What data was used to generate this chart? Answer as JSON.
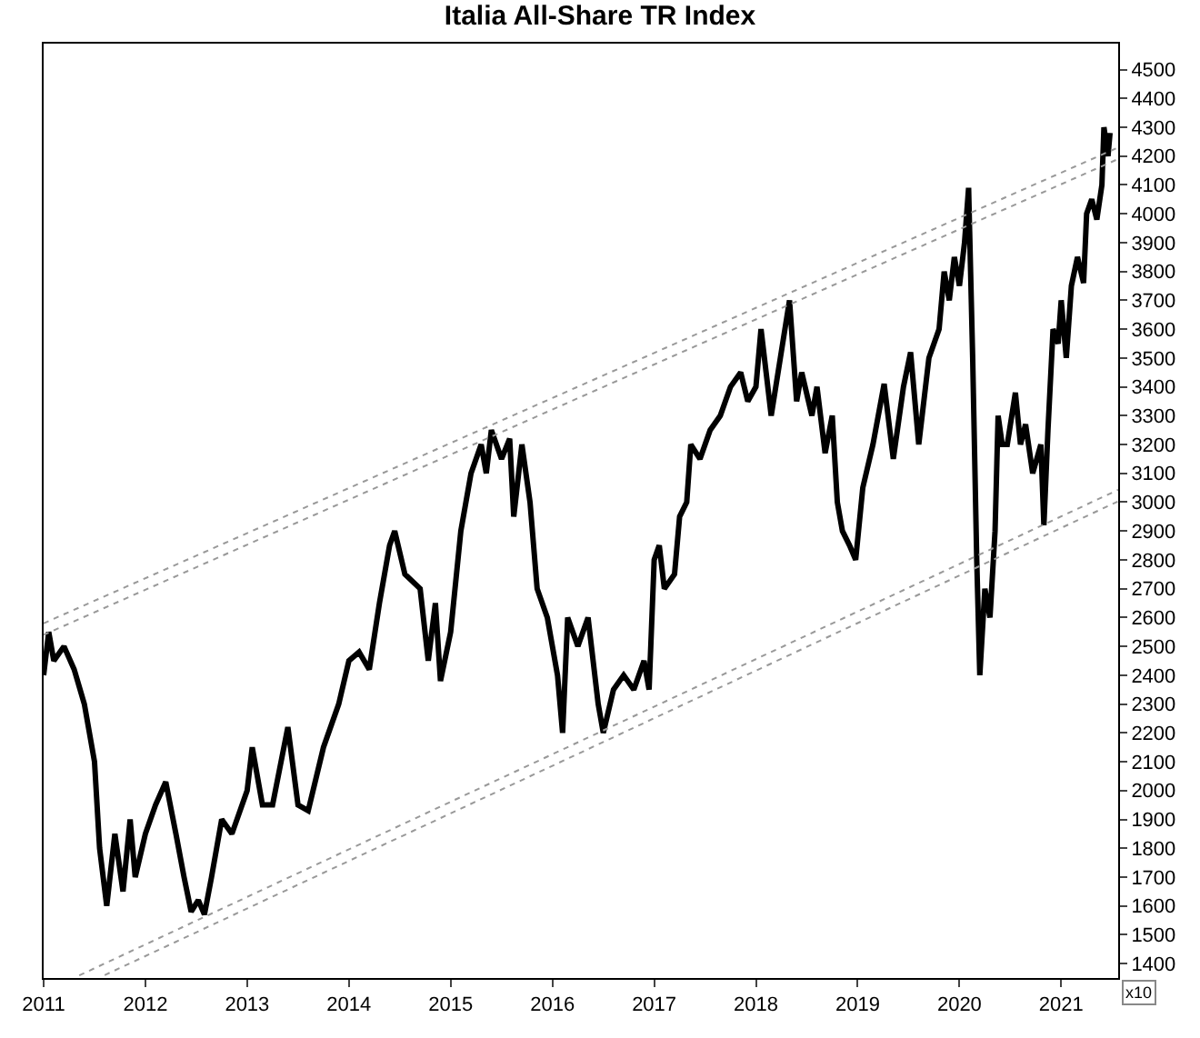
{
  "chart_data": {
    "type": "line",
    "title": "Italia All-Share TR Index",
    "annotations": [
      "x10"
    ],
    "series": [
      {
        "color": "#000000",
        "line_style": "solid",
        "x": [
          2011.0,
          2011.05,
          2011.1,
          2011.2,
          2011.3,
          2011.4,
          2011.5,
          2011.55,
          2011.62,
          2011.7,
          2011.78,
          2011.85,
          2011.9,
          2012.0,
          2012.1,
          2012.2,
          2012.3,
          2012.38,
          2012.45,
          2012.52,
          2012.58,
          2012.65,
          2012.75,
          2012.85,
          2013.0,
          2013.05,
          2013.15,
          2013.25,
          2013.4,
          2013.5,
          2013.6,
          2013.75,
          2013.9,
          2014.0,
          2014.1,
          2014.2,
          2014.3,
          2014.4,
          2014.45,
          2014.55,
          2014.7,
          2014.78,
          2014.85,
          2014.9,
          2015.0,
          2015.1,
          2015.2,
          2015.3,
          2015.35,
          2015.4,
          2015.5,
          2015.58,
          2015.62,
          2015.7,
          2015.78,
          2015.85,
          2015.95,
          2016.05,
          2016.1,
          2016.15,
          2016.25,
          2016.35,
          2016.45,
          2016.5,
          2016.6,
          2016.7,
          2016.8,
          2016.9,
          2016.95,
          2017.0,
          2017.05,
          2017.1,
          2017.2,
          2017.25,
          2017.32,
          2017.36,
          2017.45,
          2017.55,
          2017.65,
          2017.75,
          2017.85,
          2017.92,
          2018.0,
          2018.05,
          2018.1,
          2018.15,
          2018.33,
          2018.4,
          2018.45,
          2018.55,
          2018.6,
          2018.68,
          2018.75,
          2018.8,
          2018.85,
          2018.92,
          2018.98,
          2019.05,
          2019.15,
          2019.26,
          2019.35,
          2019.45,
          2019.52,
          2019.6,
          2019.7,
          2019.8,
          2019.85,
          2019.9,
          2019.95,
          2020.0,
          2020.05,
          2020.09,
          2020.13,
          2020.17,
          2020.2,
          2020.25,
          2020.3,
          2020.35,
          2020.38,
          2020.42,
          2020.47,
          2020.55,
          2020.6,
          2020.65,
          2020.72,
          2020.8,
          2020.83,
          2020.87,
          2020.92,
          2020.97,
          2021.0,
          2021.05,
          2021.1,
          2021.16,
          2021.22,
          2021.25,
          2021.3,
          2021.35,
          2021.4,
          2021.42,
          2021.46,
          2021.48
        ],
        "values": [
          2400,
          2550,
          2450,
          2500,
          2420,
          2300,
          2100,
          1800,
          1600,
          1850,
          1650,
          1900,
          1700,
          1850,
          1950,
          2030,
          1850,
          1700,
          1580,
          1620,
          1570,
          1700,
          1900,
          1850,
          2000,
          2150,
          1950,
          1950,
          2220,
          1950,
          1930,
          2150,
          2300,
          2450,
          2480,
          2420,
          2650,
          2850,
          2900,
          2750,
          2700,
          2450,
          2650,
          2380,
          2550,
          2900,
          3100,
          3200,
          3100,
          3250,
          3150,
          3220,
          2950,
          3200,
          3000,
          2700,
          2600,
          2400,
          2200,
          2600,
          2500,
          2600,
          2300,
          2200,
          2350,
          2400,
          2350,
          2450,
          2350,
          2800,
          2850,
          2700,
          2750,
          2950,
          3000,
          3200,
          3150,
          3250,
          3300,
          3400,
          3450,
          3350,
          3400,
          3600,
          3450,
          3300,
          3700,
          3350,
          3450,
          3300,
          3400,
          3170,
          3300,
          3000,
          2900,
          2850,
          2800,
          3050,
          3200,
          3410,
          3150,
          3400,
          3520,
          3200,
          3500,
          3600,
          3800,
          3700,
          3850,
          3750,
          3900,
          4090,
          3500,
          2800,
          2400,
          2700,
          2600,
          2900,
          3300,
          3200,
          3200,
          3380,
          3200,
          3270,
          3100,
          3200,
          2920,
          3250,
          3600,
          3550,
          3700,
          3500,
          3750,
          3850,
          3760,
          4000,
          4050,
          3980,
          4100,
          4300,
          4200,
          4280
        ]
      },
      {
        "color": "#999999",
        "line_style": "dotted",
        "x": [
          2011.0,
          2021.56
        ],
        "values": [
          2580,
          4230
        ]
      },
      {
        "color": "#999999",
        "line_style": "dotted",
        "x": [
          2011.0,
          2021.56
        ],
        "values": [
          2540,
          4190
        ]
      },
      {
        "color": "#999999",
        "line_style": "dotted",
        "x": [
          2011.35,
          2021.56
        ],
        "values": [
          1359,
          3043
        ]
      },
      {
        "color": "#999999",
        "line_style": "dotted",
        "x": [
          2011.6,
          2021.56
        ],
        "values": [
          1360,
          3003
        ]
      }
    ],
    "xlim": [
      2011.0,
      2021.56
    ],
    "xticks": [
      2011,
      2012,
      2013,
      2014,
      2015,
      2016,
      2017,
      2018,
      2019,
      2020,
      2021
    ],
    "ylim": [
      1350,
      4590
    ],
    "yticks": [
      1400,
      1500,
      1600,
      1700,
      1800,
      1900,
      2000,
      2100,
      2200,
      2300,
      2400,
      2500,
      2600,
      2700,
      2800,
      2900,
      3000,
      3100,
      3200,
      3300,
      3400,
      3500,
      3600,
      3700,
      3800,
      3900,
      4000,
      4100,
      4200,
      4300,
      4400,
      4500
    ],
    "marker": "none"
  }
}
